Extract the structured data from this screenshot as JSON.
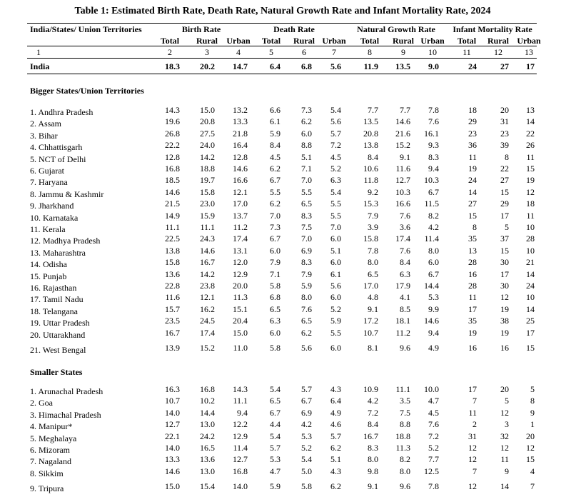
{
  "header": {
    "title": "Table 1: Estimated Birth Rate, Death Rate, Natural Growth Rate and Infant Mortality Rate, 2024"
  },
  "columns": {
    "label_header": "India/States/ Union Territories",
    "groups": [
      "Birth Rate",
      "Death Rate",
      "Natural Growth Rate",
      "Infant Mortality Rate"
    ],
    "sub": [
      "Total",
      "Rural",
      "Urban",
      "Total",
      "Rural",
      "Urban",
      "Total",
      "Rural",
      "Urban",
      "Total",
      "Rural",
      "Urban"
    ],
    "numbers": [
      "1",
      "2",
      "3",
      "4",
      "5",
      "6",
      "7",
      "8",
      "9",
      "10",
      "11",
      "12",
      "13"
    ]
  },
  "india": {
    "label": "India",
    "values": [
      "18.3",
      "20.2",
      "14.7",
      "6.4",
      "6.8",
      "5.6",
      "11.9",
      "13.5",
      "9.0",
      "24",
      "27",
      "17"
    ]
  },
  "sections": [
    {
      "title": "Bigger States/Union Territories",
      "rows": [
        {
          "label": "1. Andhra Pradesh",
          "values": [
            "14.3",
            "15.0",
            "13.2",
            "6.6",
            "7.3",
            "5.4",
            "7.7",
            "7.7",
            "7.8",
            "18",
            "20",
            "13"
          ]
        },
        {
          "label": "2. Assam",
          "values": [
            "19.6",
            "20.8",
            "13.3",
            "6.1",
            "6.2",
            "5.6",
            "13.5",
            "14.6",
            "7.6",
            "29",
            "31",
            "14"
          ]
        },
        {
          "label": "3. Bihar",
          "values": [
            "26.8",
            "27.5",
            "21.8",
            "5.9",
            "6.0",
            "5.7",
            "20.8",
            "21.6",
            "16.1",
            "23",
            "23",
            "22"
          ]
        },
        {
          "label": "4. Chhattisgarh",
          "values": [
            "22.2",
            "24.0",
            "16.4",
            "8.4",
            "8.8",
            "7.2",
            "13.8",
            "15.2",
            "9.3",
            "36",
            "39",
            "26"
          ]
        },
        {
          "label": "5. NCT of Delhi",
          "values": [
            "12.8",
            "14.2",
            "12.8",
            "4.5",
            "5.1",
            "4.5",
            "8.4",
            "9.1",
            "8.3",
            "11",
            "8",
            "11"
          ]
        },
        {
          "label": "6. Gujarat",
          "values": [
            "16.8",
            "18.8",
            "14.6",
            "6.2",
            "7.1",
            "5.2",
            "10.6",
            "11.6",
            "9.4",
            "19",
            "22",
            "15"
          ]
        },
        {
          "label": "7. Haryana",
          "values": [
            "18.5",
            "19.7",
            "16.6",
            "6.7",
            "7.0",
            "6.3",
            "11.8",
            "12.7",
            "10.3",
            "24",
            "27",
            "19"
          ]
        },
        {
          "label": "8. Jammu & Kashmir",
          "values": [
            "14.6",
            "15.8",
            "12.1",
            "5.5",
            "5.5",
            "5.4",
            "9.2",
            "10.3",
            "6.7",
            "14",
            "15",
            "12"
          ]
        },
        {
          "label": "9. Jharkhand",
          "values": [
            "21.5",
            "23.0",
            "17.0",
            "6.2",
            "6.5",
            "5.5",
            "15.3",
            "16.6",
            "11.5",
            "27",
            "29",
            "18"
          ]
        },
        {
          "label": "10. Karnataka",
          "values": [
            "14.9",
            "15.9",
            "13.7",
            "7.0",
            "8.3",
            "5.5",
            "7.9",
            "7.6",
            "8.2",
            "15",
            "17",
            "11"
          ]
        },
        {
          "label": "11. Kerala",
          "values": [
            "11.1",
            "11.1",
            "11.2",
            "7.3",
            "7.5",
            "7.0",
            "3.9",
            "3.6",
            "4.2",
            "8",
            "5",
            "10"
          ]
        },
        {
          "label": "12. Madhya Pradesh",
          "values": [
            "22.5",
            "24.3",
            "17.4",
            "6.7",
            "7.0",
            "6.0",
            "15.8",
            "17.4",
            "11.4",
            "35",
            "37",
            "28"
          ]
        },
        {
          "label": "13. Maharashtra",
          "values": [
            "13.8",
            "14.6",
            "13.1",
            "6.0",
            "6.9",
            "5.1",
            "7.8",
            "7.6",
            "8.0",
            "13",
            "15",
            "10"
          ]
        },
        {
          "label": "14. Odisha",
          "values": [
            "15.8",
            "16.7",
            "12.0",
            "7.9",
            "8.3",
            "6.0",
            "8.0",
            "8.4",
            "6.0",
            "28",
            "30",
            "21"
          ]
        },
        {
          "label": "15. Punjab",
          "values": [
            "13.6",
            "14.2",
            "12.9",
            "7.1",
            "7.9",
            "6.1",
            "6.5",
            "6.3",
            "6.7",
            "16",
            "17",
            "14"
          ]
        },
        {
          "label": "16. Rajasthan",
          "values": [
            "22.8",
            "23.8",
            "20.0",
            "5.8",
            "5.9",
            "5.6",
            "17.0",
            "17.9",
            "14.4",
            "28",
            "30",
            "24"
          ]
        },
        {
          "label": "17. Tamil Nadu",
          "values": [
            "11.6",
            "12.1",
            "11.3",
            "6.8",
            "8.0",
            "6.0",
            "4.8",
            "4.1",
            "5.3",
            "11",
            "12",
            "10"
          ]
        },
        {
          "label": "18. Telangana",
          "values": [
            "15.7",
            "16.2",
            "15.1",
            "6.5",
            "7.6",
            "5.2",
            "9.1",
            "8.5",
            "9.9",
            "17",
            "19",
            "14"
          ]
        },
        {
          "label": "19. Uttar Pradesh",
          "values": [
            "23.5",
            "24.5",
            "20.4",
            "6.3",
            "6.5",
            "5.9",
            "17.2",
            "18.1",
            "14.6",
            "35",
            "38",
            "25"
          ]
        },
        {
          "label": "20. Uttarakhand",
          "values": [
            "16.7",
            "17.4",
            "15.0",
            "6.0",
            "6.2",
            "5.5",
            "10.7",
            "11.2",
            "9.4",
            "19",
            "19",
            "17"
          ]
        },
        {
          "label": "21. West Bengal",
          "values": [
            "13.9",
            "15.2",
            "11.0",
            "5.8",
            "5.6",
            "6.0",
            "8.1",
            "9.6",
            "4.9",
            "16",
            "16",
            "15"
          ]
        }
      ]
    },
    {
      "title": "Smaller States",
      "rows": [
        {
          "label": "1. Arunachal Pradesh",
          "values": [
            "16.3",
            "16.8",
            "14.3",
            "5.4",
            "5.7",
            "4.3",
            "10.9",
            "11.1",
            "10.0",
            "17",
            "20",
            "5"
          ]
        },
        {
          "label": "2. Goa",
          "values": [
            "10.7",
            "10.2",
            "11.1",
            "6.5",
            "6.7",
            "6.4",
            "4.2",
            "3.5",
            "4.7",
            "7",
            "5",
            "8"
          ]
        },
        {
          "label": "3. Himachal Pradesh",
          "values": [
            "14.0",
            "14.4",
            "9.4",
            "6.7",
            "6.9",
            "4.9",
            "7.2",
            "7.5",
            "4.5",
            "11",
            "12",
            "9"
          ]
        },
        {
          "label": "4. Manipur*",
          "values": [
            "12.7",
            "13.0",
            "12.2",
            "4.4",
            "4.2",
            "4.6",
            "8.4",
            "8.8",
            "7.6",
            "2",
            "3",
            "1"
          ]
        },
        {
          "label": "5. Meghalaya",
          "values": [
            "22.1",
            "24.2",
            "12.9",
            "5.4",
            "5.3",
            "5.7",
            "16.7",
            "18.8",
            "7.2",
            "31",
            "32",
            "20"
          ]
        },
        {
          "label": "6. Mizoram",
          "values": [
            "14.0",
            "16.5",
            "11.4",
            "5.7",
            "5.2",
            "6.2",
            "8.3",
            "11.3",
            "5.2",
            "12",
            "12",
            "12"
          ]
        },
        {
          "label": "7. Nagaland",
          "values": [
            "13.3",
            "13.6",
            "12.7",
            "5.3",
            "5.4",
            "5.1",
            "8.0",
            "8.2",
            "7.7",
            "12",
            "11",
            "15"
          ]
        },
        {
          "label": "8. Sikkim",
          "values": [
            "14.6",
            "13.0",
            "16.8",
            "4.7",
            "5.0",
            "4.3",
            "9.8",
            "8.0",
            "12.5",
            "7",
            "9",
            "4"
          ]
        },
        {
          "label": "9. Tripura",
          "values": [
            "15.0",
            "15.4",
            "14.0",
            "5.9",
            "5.8",
            "6.2",
            "9.1",
            "9.6",
            "7.8",
            "12",
            "14",
            "7"
          ]
        }
      ]
    }
  ]
}
